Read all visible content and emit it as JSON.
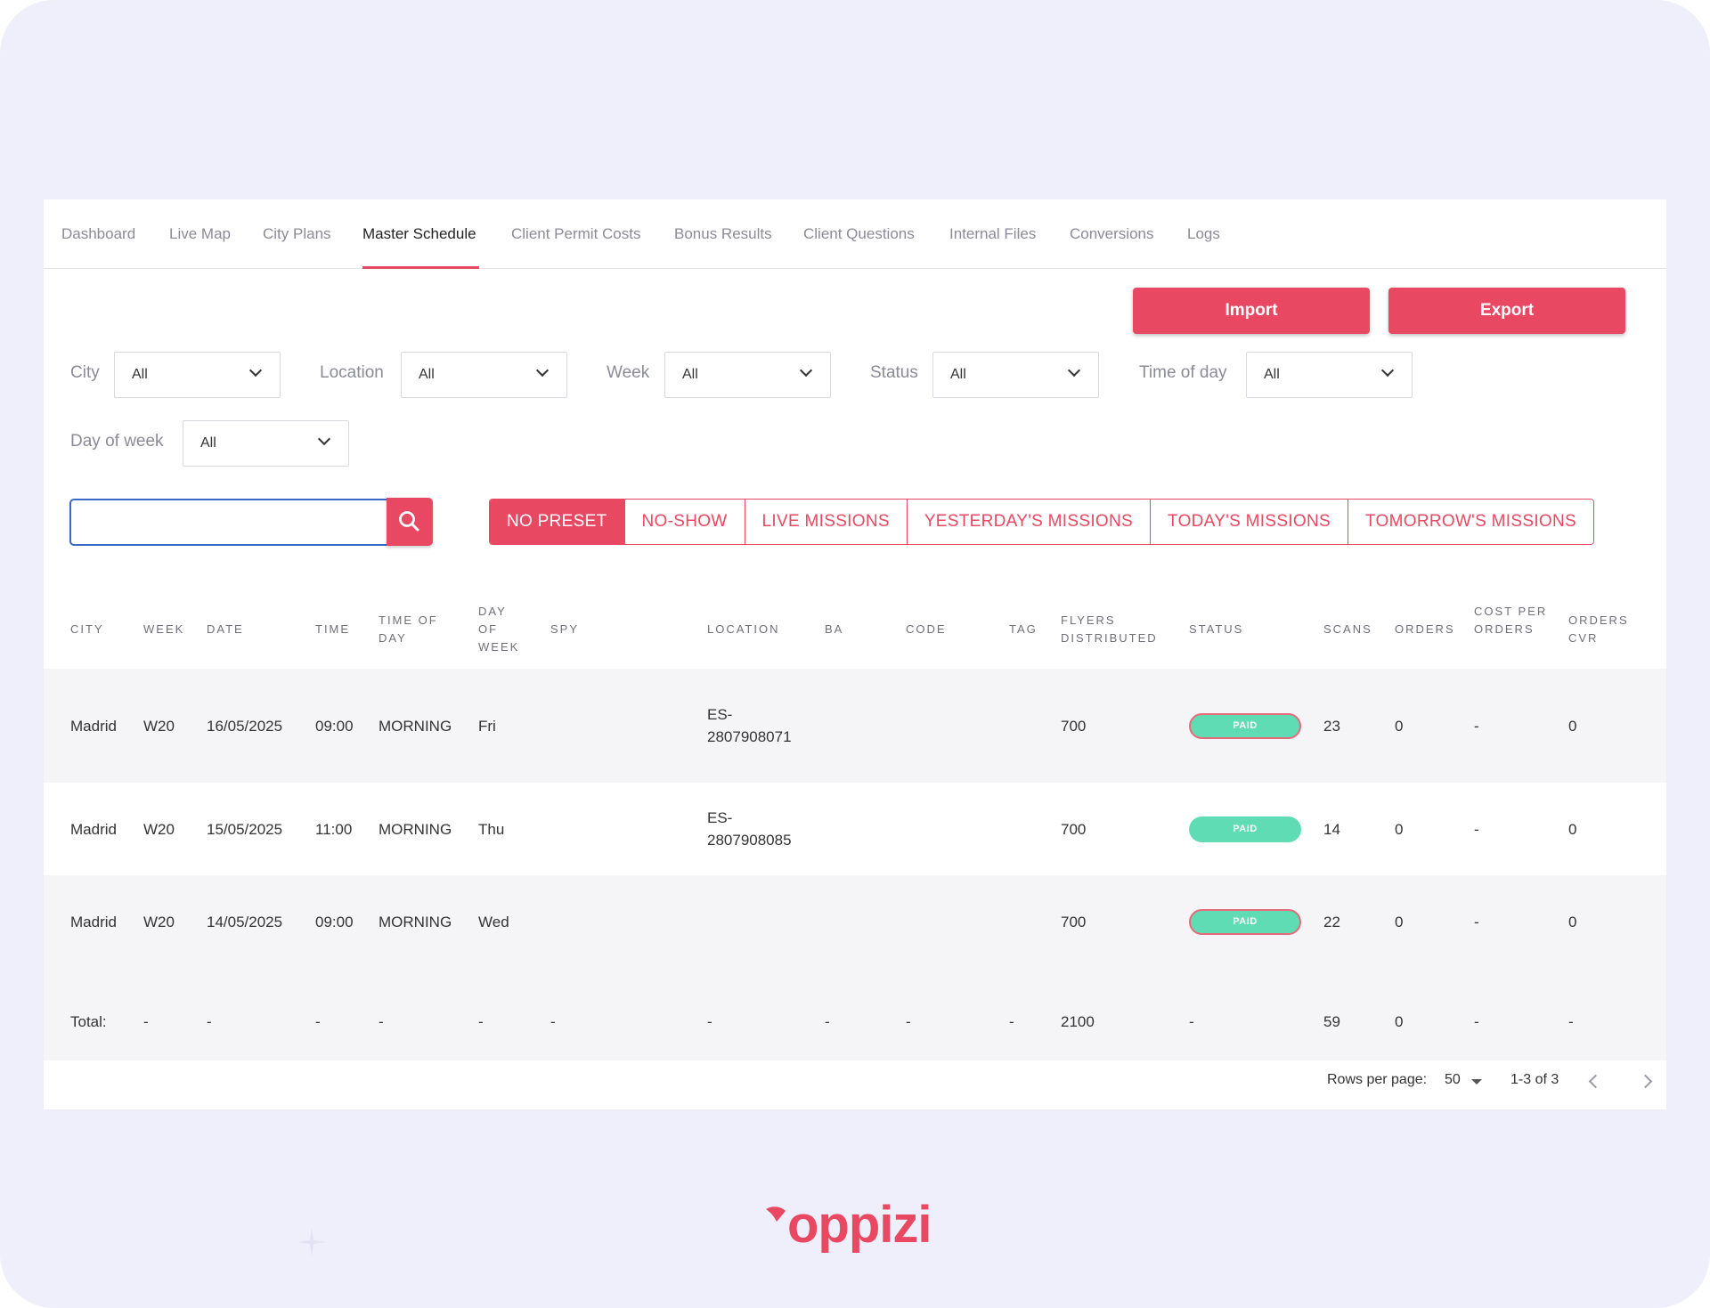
{
  "tabs": [
    {
      "label": "Dashboard",
      "active": false
    },
    {
      "label": "Live Map",
      "active": false
    },
    {
      "label": "City Plans",
      "active": false
    },
    {
      "label": "Master Schedule",
      "active": true
    },
    {
      "label": "Client Permit Costs",
      "active": false
    },
    {
      "label": "Bonus Results",
      "active": false
    },
    {
      "label": "Client Questions",
      "active": false
    },
    {
      "label": "Internal Files",
      "active": false
    },
    {
      "label": "Conversions",
      "active": false
    },
    {
      "label": "Logs",
      "active": false
    }
  ],
  "actions": {
    "import_label": "Import",
    "export_label": "Export"
  },
  "filters": [
    {
      "label": "City",
      "value": "All"
    },
    {
      "label": "Location",
      "value": "All"
    },
    {
      "label": "Week",
      "value": "All"
    },
    {
      "label": "Status",
      "value": "All"
    },
    {
      "label": "Time of day",
      "value": "All"
    },
    {
      "label": "Day of week",
      "value": "All"
    }
  ],
  "search": {
    "value": "",
    "placeholder": ""
  },
  "presets": [
    {
      "label": "NO PRESET",
      "active": true
    },
    {
      "label": "NO-SHOW",
      "active": false
    },
    {
      "label": "LIVE MISSIONS",
      "active": false
    },
    {
      "label": "YESTERDAY'S MISSIONS",
      "active": false
    },
    {
      "label": "TODAY'S MISSIONS",
      "active": false
    },
    {
      "label": "TOMORROW'S MISSIONS",
      "active": false
    }
  ],
  "table": {
    "headers": [
      "CITY",
      "WEEK",
      "DATE",
      "TIME",
      "TIME OF DAY",
      "DAY OF WEEK",
      "SPY",
      "LOCATION",
      "BA",
      "CODE",
      "TAG",
      "FLYERS DISTRIBUTED",
      "STATUS",
      "SCANS",
      "ORDERS",
      "COST PER ORDERS",
      "ORDERS CVR"
    ],
    "rows": [
      {
        "city": "Madrid",
        "week": "W20",
        "date": "16/05/2025",
        "time": "09:00",
        "time_of_day": "MORNING",
        "day_of_week": "Fri",
        "spy": "",
        "location_1": "ES-",
        "location_2": "2807908071",
        "ba": "",
        "code": "",
        "tag": "",
        "flyers": "700",
        "status": "PAID",
        "scans": "23",
        "orders": "0",
        "cost_per_order": "-",
        "cvr": "0"
      },
      {
        "city": "Madrid",
        "week": "W20",
        "date": "15/05/2025",
        "time": "11:00",
        "time_of_day": "MORNING",
        "day_of_week": "Thu",
        "spy": "",
        "location_1": "ES-",
        "location_2": "2807908085",
        "ba": "",
        "code": "",
        "tag": "",
        "flyers": "700",
        "status": "PAID",
        "scans": "14",
        "orders": "0",
        "cost_per_order": "-",
        "cvr": "0"
      },
      {
        "city": "Madrid",
        "week": "W20",
        "date": "14/05/2025",
        "time": "09:00",
        "time_of_day": "MORNING",
        "day_of_week": "Wed",
        "spy": "",
        "location_1": "",
        "location_2": "",
        "ba": "",
        "code": "",
        "tag": "",
        "flyers": "700",
        "status": "PAID",
        "scans": "22",
        "orders": "0",
        "cost_per_order": "-",
        "cvr": "0"
      }
    ],
    "total": {
      "label": "Total:",
      "week": "-",
      "date": "-",
      "time": "-",
      "time_of_day": "-",
      "day_of_week": "-",
      "spy": "-",
      "location": "-",
      "ba": "-",
      "code": "-",
      "tag": "-",
      "flyers": "2100",
      "status": "-",
      "scans": "59",
      "orders": "0",
      "cost_per_order": "-",
      "cvr": "-"
    }
  },
  "pagination": {
    "rows_per_page_label": "Rows per page:",
    "rows_per_page": "50",
    "range": "1-3 of 3"
  },
  "brand": {
    "logo_text": "oppizi",
    "accent": "#e84862",
    "status_paid": "#5fdcb4"
  }
}
